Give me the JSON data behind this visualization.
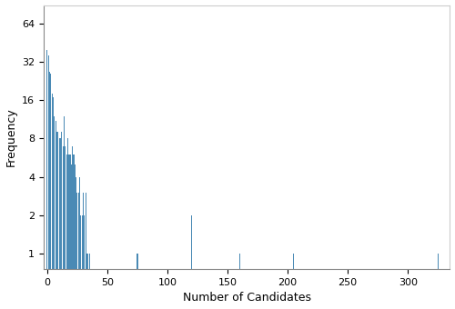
{
  "title": "",
  "xlabel": "Number of Candidates",
  "ylabel": "Frequency",
  "bar_color": "#4a8ab5",
  "xlim": [
    -3,
    335
  ],
  "ylim_log": [
    0.75,
    90
  ],
  "yticks": [
    1,
    2,
    4,
    8,
    16,
    32,
    64
  ],
  "xticks": [
    0,
    50,
    100,
    150,
    200,
    250,
    300
  ],
  "candidates": [
    0,
    1,
    2,
    3,
    4,
    5,
    6,
    7,
    8,
    9,
    10,
    11,
    12,
    13,
    14,
    15,
    16,
    17,
    18,
    19,
    20,
    21,
    22,
    23,
    24,
    25,
    26,
    27,
    28,
    29,
    30,
    31,
    32,
    33,
    34,
    35,
    75,
    120,
    160,
    205,
    325
  ],
  "frequencies": [
    40,
    36,
    27,
    26,
    18,
    17,
    12,
    11,
    9,
    9,
    8,
    8,
    9,
    7,
    12,
    7,
    6,
    8,
    6,
    6,
    5,
    7,
    6,
    5,
    4,
    3,
    3,
    4,
    2,
    2,
    3,
    2,
    3,
    1,
    1,
    1,
    1,
    2,
    1,
    1,
    1
  ]
}
